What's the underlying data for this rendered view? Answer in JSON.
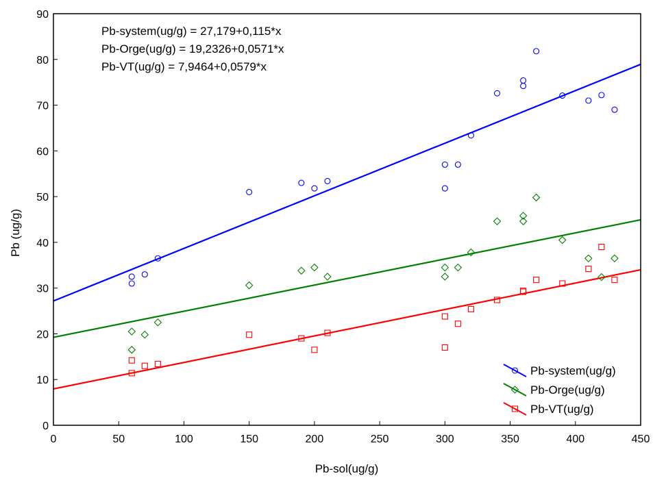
{
  "chart_data": {
    "type": "scatter",
    "xlabel": "Pb-sol(ug/g)",
    "ylabel": "Pb (ug/g)",
    "xlim": [
      0,
      450
    ],
    "ylim": [
      0,
      90
    ],
    "xticks": [
      0,
      50,
      100,
      150,
      200,
      250,
      300,
      350,
      400,
      450
    ],
    "yticks": [
      0,
      10,
      20,
      30,
      40,
      50,
      60,
      70,
      80,
      90
    ],
    "grid": false,
    "legend_position": "bottom-right",
    "annotations": [
      "Pb-system(ug/g) = 27,179+0,115*x",
      "Pb-Orge(ug/g) = 19,2326+0,0571*x",
      "Pb-VT(ug/g) = 7,9464+0,0579*x"
    ],
    "series": [
      {
        "name": "Pb-system(ug/g)",
        "color": "#0000ff",
        "marker": "circle",
        "fit": {
          "intercept": 27.179,
          "slope": 0.115
        },
        "points": [
          [
            60,
            32.5
          ],
          [
            60,
            31
          ],
          [
            70,
            33
          ],
          [
            80,
            36.5
          ],
          [
            150,
            51
          ],
          [
            190,
            53
          ],
          [
            200,
            51.8
          ],
          [
            210,
            53.4
          ],
          [
            300,
            57
          ],
          [
            300,
            51.8
          ],
          [
            310,
            57
          ],
          [
            320,
            63.4
          ],
          [
            340,
            72.6
          ],
          [
            360,
            75.4
          ],
          [
            360,
            74.2
          ],
          [
            370,
            81.8
          ],
          [
            390,
            72.1
          ],
          [
            410,
            71
          ],
          [
            420,
            72.2
          ],
          [
            430,
            69
          ]
        ]
      },
      {
        "name": "Pb-Orge(ug/g)",
        "color": "#008000",
        "marker": "diamond",
        "fit": {
          "intercept": 19.2326,
          "slope": 0.0571
        },
        "points": [
          [
            60,
            20.5
          ],
          [
            60,
            16.5
          ],
          [
            70,
            19.8
          ],
          [
            80,
            22.5
          ],
          [
            150,
            30.6
          ],
          [
            190,
            33.8
          ],
          [
            200,
            34.5
          ],
          [
            210,
            32.5
          ],
          [
            300,
            34.5
          ],
          [
            300,
            32.5
          ],
          [
            310,
            34.5
          ],
          [
            320,
            37.8
          ],
          [
            340,
            44.6
          ],
          [
            360,
            45.8
          ],
          [
            360,
            44.6
          ],
          [
            370,
            49.8
          ],
          [
            390,
            40.5
          ],
          [
            410,
            36.5
          ],
          [
            420,
            32.4
          ],
          [
            430,
            36.5
          ]
        ]
      },
      {
        "name": "Pb-VT(ug/g)",
        "color": "#ff0000",
        "marker": "square",
        "fit": {
          "intercept": 7.9464,
          "slope": 0.0579
        },
        "points": [
          [
            60,
            14.2
          ],
          [
            60,
            11.4
          ],
          [
            70,
            13
          ],
          [
            80,
            13.4
          ],
          [
            150,
            19.8
          ],
          [
            190,
            19
          ],
          [
            200,
            16.5
          ],
          [
            210,
            20.2
          ],
          [
            300,
            23.8
          ],
          [
            300,
            17
          ],
          [
            310,
            22.2
          ],
          [
            320,
            25.4
          ],
          [
            340,
            27.4
          ],
          [
            360,
            29.2
          ],
          [
            360,
            29.4
          ],
          [
            370,
            31.8
          ],
          [
            390,
            31
          ],
          [
            410,
            34.2
          ],
          [
            420,
            39
          ],
          [
            430,
            31.8
          ]
        ]
      }
    ]
  }
}
